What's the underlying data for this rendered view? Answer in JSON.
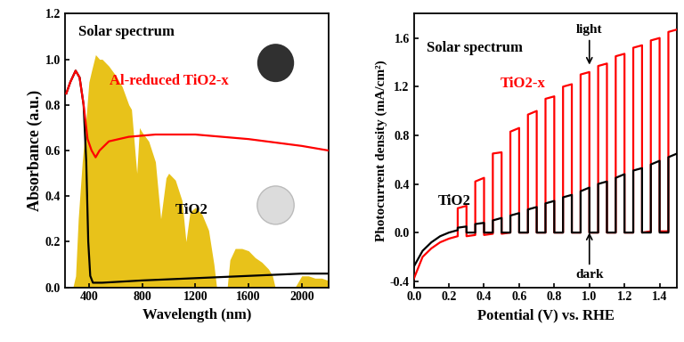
{
  "chart_data": [
    {
      "type": "line",
      "xlabel": "Wavelength (nm)",
      "ylabel": "Absorbance (a.u.)",
      "xlim": [
        220,
        2200
      ],
      "xticks": [
        400,
        800,
        1200,
        1600,
        2000
      ],
      "ylim": [
        0,
        1.2
      ],
      "yticks": [
        {
          "value": 0,
          "label": "0.0"
        },
        {
          "value": 0.2,
          "label": "0.2"
        },
        {
          "value": 0.4,
          "label": "0.4"
        },
        {
          "value": 0.6,
          "label": "0.6"
        },
        {
          "value": 0.8,
          "label": "0.8"
        },
        {
          "value": 1,
          "label": "1.0"
        },
        {
          "value": 1.2,
          "label": "1.2"
        }
      ],
      "series": [
        {
          "name": "Solar spectrum",
          "type": "area",
          "color": "#e8c21a",
          "x": [
            280,
            300,
            320,
            350,
            380,
            400,
            420,
            450,
            480,
            500,
            550,
            600,
            650,
            700,
            720,
            760,
            780,
            800,
            850,
            900,
            940,
            980,
            1000,
            1050,
            1100,
            1130,
            1160,
            1200,
            1250,
            1300,
            1340,
            1360,
            1400,
            1440,
            1460,
            1500,
            1550,
            1600,
            1650,
            1700,
            1750,
            1780,
            1800,
            1950,
            1980,
            2000,
            2050,
            2100,
            2150,
            2200
          ],
          "values": [
            0,
            0.05,
            0.3,
            0.55,
            0.75,
            0.9,
            0.95,
            1.02,
            1.0,
            1.0,
            0.97,
            0.93,
            0.88,
            0.8,
            0.78,
            0.5,
            0.7,
            0.68,
            0.64,
            0.55,
            0.3,
            0.48,
            0.5,
            0.47,
            0.38,
            0.2,
            0.33,
            0.35,
            0.32,
            0.25,
            0.1,
            0.0,
            0.0,
            0.0,
            0.12,
            0.17,
            0.17,
            0.16,
            0.13,
            0.11,
            0.08,
            0.05,
            0.0,
            0.0,
            0.03,
            0.05,
            0.05,
            0.04,
            0.04,
            0.03
          ]
        },
        {
          "name": "TiO2",
          "type": "line",
          "color": "#000000",
          "x": [
            230,
            260,
            300,
            330,
            360,
            380,
            395,
            410,
            430,
            500,
            800,
            1200,
            1600,
            2000,
            2200
          ],
          "values": [
            0.85,
            0.9,
            0.95,
            0.92,
            0.8,
            0.55,
            0.2,
            0.05,
            0.02,
            0.02,
            0.03,
            0.04,
            0.05,
            0.06,
            0.06
          ]
        },
        {
          "name": "Al-reduced TiO2-x",
          "type": "line",
          "color": "#ff0000",
          "x": [
            230,
            260,
            300,
            330,
            360,
            390,
            420,
            450,
            480,
            550,
            700,
            900,
            1200,
            1600,
            2000,
            2200
          ],
          "values": [
            0.85,
            0.9,
            0.95,
            0.92,
            0.8,
            0.65,
            0.6,
            0.57,
            0.6,
            0.64,
            0.66,
            0.67,
            0.67,
            0.65,
            0.62,
            0.6
          ]
        }
      ]
    },
    {
      "type": "line",
      "xlabel": "Potential (V) vs. RHE",
      "ylabel": "Photocurrent density (mA/cm²)",
      "annotations": [
        "Solar spectrum",
        "light",
        "dark"
      ],
      "xlim": [
        0,
        1.5
      ],
      "xticks": [
        {
          "value": 0,
          "label": "0.0"
        },
        {
          "value": 0.2,
          "label": "0.2"
        },
        {
          "value": 0.4,
          "label": "0.4"
        },
        {
          "value": 0.6,
          "label": "0.6"
        },
        {
          "value": 0.8,
          "label": "0.8"
        },
        {
          "value": 1,
          "label": "1.0"
        },
        {
          "value": 1.2,
          "label": "1.2"
        },
        {
          "value": 1.4,
          "label": "1.4"
        }
      ],
      "ylim": [
        -0.45,
        1.8
      ],
      "yticks": [
        {
          "value": -0.4,
          "label": "-0.4"
        },
        {
          "value": 0,
          "label": "0.0"
        },
        {
          "value": 0.4,
          "label": "0.4"
        },
        {
          "value": 0.8,
          "label": "0.8"
        },
        {
          "value": 1.2,
          "label": "1.2"
        },
        {
          "value": 1.6,
          "label": "1.6"
        }
      ],
      "series": [
        {
          "name": "TiO2-x",
          "type": "line",
          "color": "#ff0000",
          "x": [
            0.0,
            0.05,
            0.1,
            0.15,
            0.2,
            0.25,
            0.25,
            0.3,
            0.3,
            0.35,
            0.35,
            0.4,
            0.4,
            0.45,
            0.45,
            0.5,
            0.5,
            0.55,
            0.55,
            0.6,
            0.6,
            0.65,
            0.65,
            0.7,
            0.7,
            0.75,
            0.75,
            0.8,
            0.8,
            0.85,
            0.85,
            0.9,
            0.9,
            0.95,
            0.95,
            1.0,
            1.0,
            1.05,
            1.05,
            1.1,
            1.1,
            1.15,
            1.15,
            1.2,
            1.2,
            1.25,
            1.25,
            1.3,
            1.3,
            1.35,
            1.35,
            1.4,
            1.4,
            1.45,
            1.45,
            1.5
          ],
          "values": [
            -0.38,
            -0.2,
            -0.13,
            -0.08,
            -0.05,
            -0.03,
            0.2,
            0.22,
            -0.03,
            -0.02,
            0.42,
            0.45,
            -0.02,
            -0.01,
            0.65,
            0.66,
            -0.01,
            0.0,
            0.83,
            0.86,
            0.0,
            0.0,
            0.97,
            1.0,
            0.0,
            0.0,
            1.1,
            1.12,
            0.0,
            0.0,
            1.2,
            1.22,
            0.0,
            0.0,
            1.3,
            1.32,
            0.0,
            0.0,
            1.37,
            1.39,
            0.0,
            0.0,
            1.45,
            1.47,
            0.0,
            0.0,
            1.52,
            1.54,
            0.0,
            0.01,
            1.58,
            1.6,
            0.01,
            0.01,
            1.65,
            1.67
          ]
        },
        {
          "name": "TiO2",
          "type": "line",
          "color": "#000000",
          "x": [
            0.0,
            0.05,
            0.1,
            0.15,
            0.2,
            0.25,
            0.25,
            0.3,
            0.3,
            0.35,
            0.35,
            0.4,
            0.4,
            0.45,
            0.45,
            0.5,
            0.5,
            0.55,
            0.55,
            0.6,
            0.6,
            0.65,
            0.65,
            0.7,
            0.7,
            0.75,
            0.75,
            0.8,
            0.8,
            0.85,
            0.85,
            0.9,
            0.9,
            0.95,
            0.95,
            1.0,
            1.0,
            1.05,
            1.05,
            1.1,
            1.1,
            1.15,
            1.15,
            1.2,
            1.2,
            1.25,
            1.25,
            1.3,
            1.3,
            1.35,
            1.35,
            1.4,
            1.4,
            1.45,
            1.45,
            1.5
          ],
          "values": [
            -0.28,
            -0.15,
            -0.08,
            -0.03,
            0.0,
            0.02,
            0.04,
            0.05,
            0.0,
            0.0,
            0.07,
            0.08,
            0.0,
            0.0,
            0.1,
            0.12,
            0.0,
            0.0,
            0.14,
            0.16,
            0.0,
            0.0,
            0.19,
            0.21,
            0.0,
            0.0,
            0.24,
            0.26,
            0.0,
            0.0,
            0.29,
            0.31,
            0.0,
            0.0,
            0.34,
            0.37,
            0.0,
            0.0,
            0.4,
            0.42,
            0.0,
            0.0,
            0.45,
            0.48,
            0.0,
            0.0,
            0.51,
            0.53,
            0.0,
            0.0,
            0.56,
            0.59,
            0.0,
            0.0,
            0.62,
            0.65
          ]
        }
      ]
    }
  ]
}
